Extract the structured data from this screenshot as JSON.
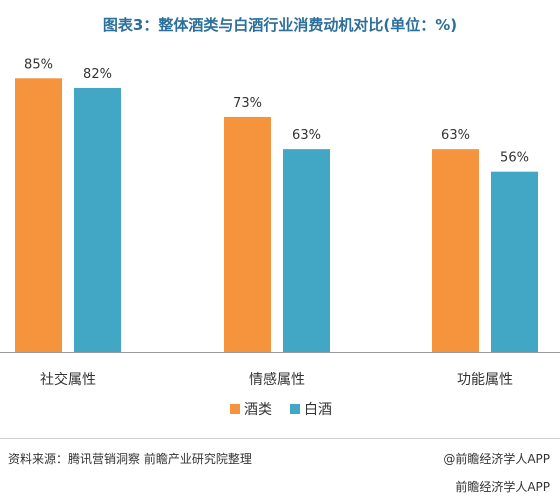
{
  "chart_data": {
    "type": "bar",
    "title": "图表3：整体酒类与白酒行业消费动机对比(单位：%)",
    "categories": [
      "社交属性",
      "情感属性",
      "功能属性"
    ],
    "series": [
      {
        "name": "酒类",
        "values": [
          85,
          73,
          63
        ],
        "labels": [
          "85%",
          "73%",
          "63%"
        ],
        "color": "#f5943d"
      },
      {
        "name": "白酒",
        "values": [
          82,
          63,
          56
        ],
        "labels": [
          "82%",
          "63%",
          "56%"
        ],
        "color": "#42a7c4"
      }
    ],
    "ylim": [
      0,
      100
    ],
    "grid": false,
    "legend": "bottom-center"
  },
  "footer": {
    "source": "资料来源：腾讯营销洞察 前瞻产业研究院整理",
    "credit": "@前瞻经济学人APP",
    "badge": "前瞻经济学人APP"
  },
  "colors": {
    "title": "#2b6f9a",
    "axis": "#999999"
  }
}
